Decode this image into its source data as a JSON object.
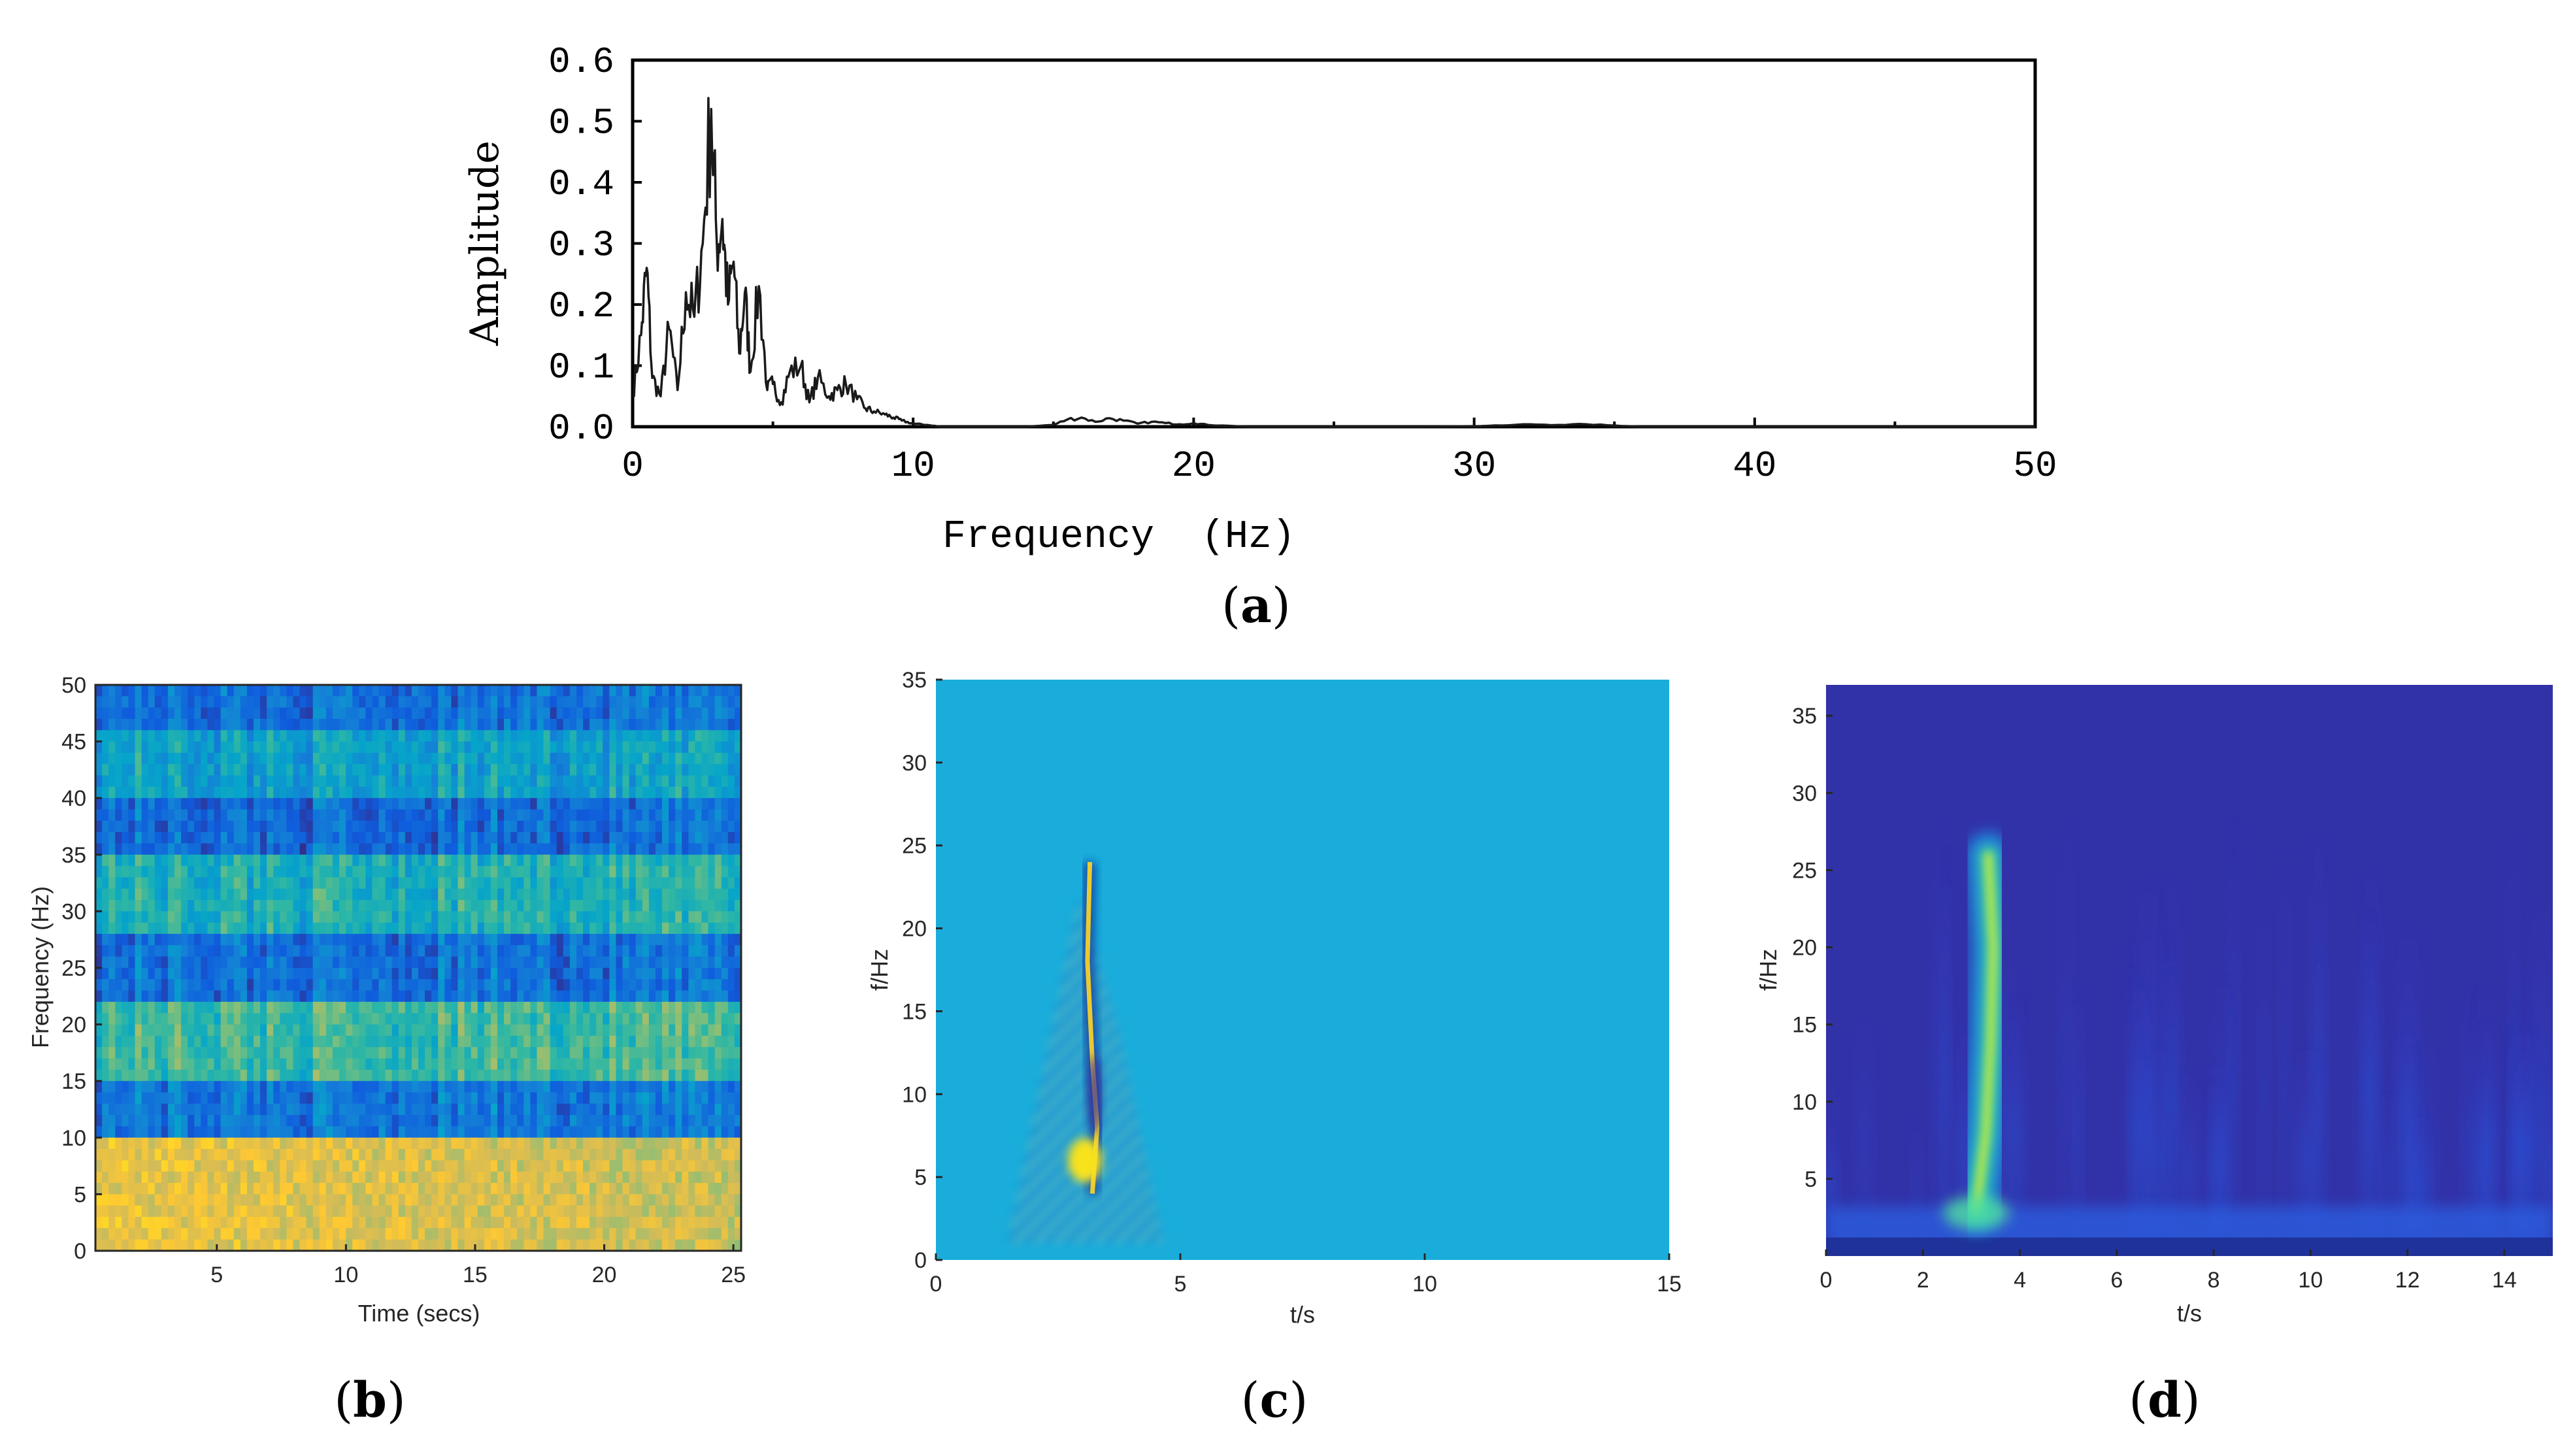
{
  "colors": {
    "axis": "#000000",
    "line": "#1a1a1a",
    "parula": [
      "#352a87",
      "#0f5cdd",
      "#1481d6",
      "#06a4ca",
      "#2eb7a4",
      "#87bf77",
      "#d1bb59",
      "#fec832",
      "#f9fb0e"
    ]
  },
  "chart_data": [
    {
      "id": "a",
      "type": "line",
      "panel_label": "a",
      "title": "",
      "xlabel": "Frequency  (Hz)",
      "ylabel": "Amplitude",
      "xlim": [
        0,
        50
      ],
      "ylim": [
        0,
        0.6
      ],
      "xticks": [
        "0",
        "10",
        "20",
        "30",
        "40",
        "50"
      ],
      "yticks": [
        "0.0",
        "0.1",
        "0.2",
        "0.3",
        "0.4",
        "0.5",
        "0.6"
      ],
      "x": [
        0,
        0.3,
        0.5,
        0.7,
        1.0,
        1.3,
        1.6,
        1.9,
        2.2,
        2.5,
        2.8,
        3.0,
        3.2,
        3.4,
        3.6,
        3.8,
        4.0,
        4.2,
        4.5,
        4.8,
        5.0,
        5.3,
        5.6,
        6.0,
        6.3,
        6.6,
        7.0,
        7.3,
        7.6,
        8.0,
        8.3,
        8.6,
        9.0,
        9.3,
        9.6,
        10.0,
        10.5,
        11.0,
        12.0,
        13.0,
        14.0,
        15.0,
        15.5,
        16.0,
        16.5,
        17.0,
        17.5,
        18.0,
        18.5,
        19.0,
        19.5,
        20.0,
        20.5,
        21.0,
        22.0,
        25.0,
        28.0,
        30.0,
        31.0,
        32.0,
        33.0,
        34.0,
        35.0,
        36.0,
        40.0,
        45.0,
        50.0
      ],
      "y": [
        0.05,
        0.15,
        0.26,
        0.08,
        0.05,
        0.16,
        0.06,
        0.22,
        0.18,
        0.3,
        0.52,
        0.3,
        0.34,
        0.2,
        0.27,
        0.12,
        0.22,
        0.09,
        0.23,
        0.06,
        0.07,
        0.04,
        0.09,
        0.1,
        0.04,
        0.08,
        0.05,
        0.06,
        0.07,
        0.045,
        0.03,
        0.025,
        0.02,
        0.015,
        0.01,
        0.005,
        0.003,
        0.0,
        0.0,
        0.0,
        0.0,
        0.003,
        0.012,
        0.015,
        0.008,
        0.014,
        0.01,
        0.005,
        0.008,
        0.006,
        0.004,
        0.006,
        0.003,
        0.002,
        0.0,
        0.0,
        0.0,
        0.001,
        0.002,
        0.004,
        0.003,
        0.004,
        0.002,
        0.0,
        0.0,
        0.0,
        0.0
      ]
    },
    {
      "id": "b",
      "type": "heatmap",
      "panel_label": "b",
      "title": "",
      "xlabel": "Time (secs)",
      "ylabel": "Frequency (Hz)",
      "xlim": [
        0.3,
        25.3
      ],
      "ylim": [
        0,
        50
      ],
      "xticks": [
        5,
        10,
        15,
        20,
        25
      ],
      "yticks": [
        0,
        5,
        10,
        15,
        20,
        25,
        30,
        35,
        40,
        45,
        50
      ],
      "energy_bands_hz": [
        [
          0,
          10,
          0.87
        ],
        [
          10,
          15,
          0.22
        ],
        [
          15,
          22,
          0.52
        ],
        [
          22,
          28,
          0.2
        ],
        [
          28,
          35,
          0.45
        ],
        [
          35,
          40,
          0.18
        ],
        [
          40,
          46,
          0.38
        ],
        [
          46,
          50,
          0.2
        ]
      ]
    },
    {
      "id": "c",
      "type": "heatmap",
      "panel_label": "c",
      "title": "",
      "xlabel": "t/s",
      "ylabel": "f/Hz",
      "xlim": [
        0,
        15
      ],
      "ylim": [
        0,
        35
      ],
      "xticks": [
        0,
        5,
        10,
        15
      ],
      "yticks": [
        0,
        5,
        10,
        15,
        20,
        25,
        30,
        35
      ],
      "ridge": {
        "t_s": [
          3.2,
          3.25,
          3.3,
          3.2,
          3.1,
          3.15
        ],
        "f_hz": [
          4,
          6,
          8,
          12,
          18,
          24
        ]
      }
    },
    {
      "id": "d",
      "type": "heatmap",
      "panel_label": "d",
      "title": "",
      "xlabel": "t/s",
      "ylabel": "f/Hz",
      "xlim": [
        0,
        15
      ],
      "ylim": [
        0,
        37
      ],
      "xticks": [
        0,
        2,
        4,
        6,
        8,
        10,
        12,
        14
      ],
      "yticks": [
        5,
        10,
        15,
        20,
        25,
        30,
        35
      ],
      "ridge": {
        "t_s": [
          3.1,
          3.3,
          3.4,
          3.45,
          3.35
        ],
        "f_hz": [
          3,
          8,
          14,
          20,
          26
        ]
      }
    }
  ]
}
